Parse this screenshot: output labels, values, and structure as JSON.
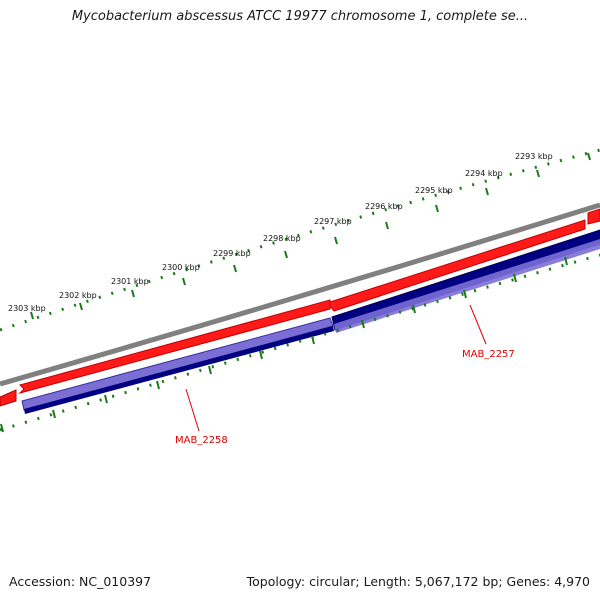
{
  "title": "Mycobacterium abscessus ATCC 19977 chromosome 1, complete se...",
  "footer": {
    "accession": "Accession: NC_010397",
    "stats": "Topology: circular; Length: 5,067,172 bp; Genes: 4,970"
  },
  "ruler_labels": [
    "2293 kbp",
    "2294 kbp",
    "2295 kbp",
    "2296 kbp",
    "2297 kbp",
    "2298 kbp",
    "2299 kbp",
    "2300 kbp",
    "2301 kbp",
    "2302 kbp",
    "2303 kbp"
  ],
  "genes": [
    {
      "label": "MAB_2257",
      "color": "#e00000"
    },
    {
      "label": "MAB_2258",
      "color": "#e00000"
    }
  ],
  "colors": {
    "backbone": "#808080",
    "cds": "#ff1a1a",
    "cds_dark": "#b00000",
    "gene_forward": "#000080",
    "gene_light": "#7b6fd6",
    "ticks": "#1a7a1a"
  }
}
